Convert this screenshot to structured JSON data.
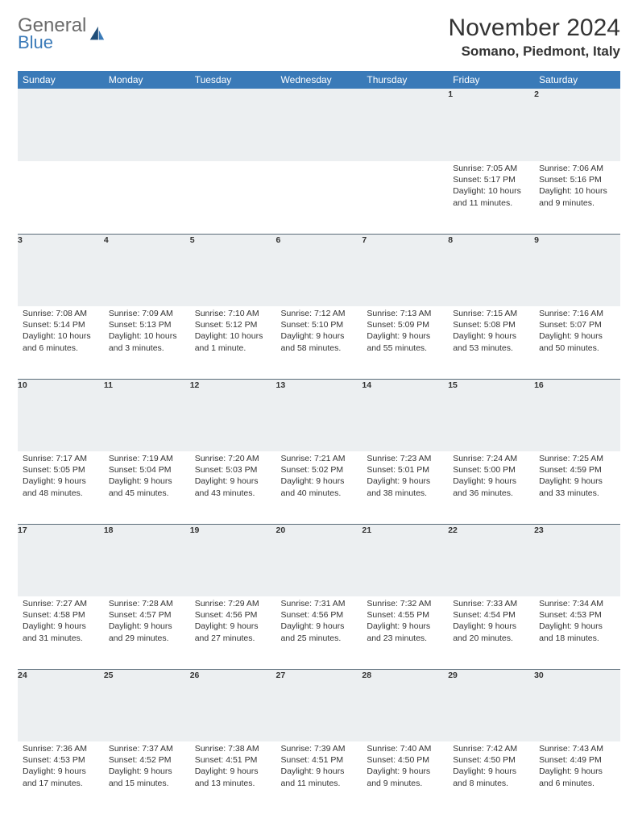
{
  "brand": {
    "word1": "General",
    "word2": "Blue"
  },
  "title": "November 2024",
  "location": "Somano, Piedmont, Italy",
  "colors": {
    "header_bg": "#3a7ab8",
    "daynum_bg": "#eceff1",
    "daynum_border": "#5a6b78",
    "text": "#333333",
    "logo_gray": "#6b6b6b"
  },
  "weekdays": [
    "Sunday",
    "Monday",
    "Tuesday",
    "Wednesday",
    "Thursday",
    "Friday",
    "Saturday"
  ],
  "weeks": [
    [
      null,
      null,
      null,
      null,
      null,
      {
        "n": "1",
        "sr": "Sunrise: 7:05 AM",
        "ss": "Sunset: 5:17 PM",
        "dl": "Daylight: 10 hours and 11 minutes."
      },
      {
        "n": "2",
        "sr": "Sunrise: 7:06 AM",
        "ss": "Sunset: 5:16 PM",
        "dl": "Daylight: 10 hours and 9 minutes."
      }
    ],
    [
      {
        "n": "3",
        "sr": "Sunrise: 7:08 AM",
        "ss": "Sunset: 5:14 PM",
        "dl": "Daylight: 10 hours and 6 minutes."
      },
      {
        "n": "4",
        "sr": "Sunrise: 7:09 AM",
        "ss": "Sunset: 5:13 PM",
        "dl": "Daylight: 10 hours and 3 minutes."
      },
      {
        "n": "5",
        "sr": "Sunrise: 7:10 AM",
        "ss": "Sunset: 5:12 PM",
        "dl": "Daylight: 10 hours and 1 minute."
      },
      {
        "n": "6",
        "sr": "Sunrise: 7:12 AM",
        "ss": "Sunset: 5:10 PM",
        "dl": "Daylight: 9 hours and 58 minutes."
      },
      {
        "n": "7",
        "sr": "Sunrise: 7:13 AM",
        "ss": "Sunset: 5:09 PM",
        "dl": "Daylight: 9 hours and 55 minutes."
      },
      {
        "n": "8",
        "sr": "Sunrise: 7:15 AM",
        "ss": "Sunset: 5:08 PM",
        "dl": "Daylight: 9 hours and 53 minutes."
      },
      {
        "n": "9",
        "sr": "Sunrise: 7:16 AM",
        "ss": "Sunset: 5:07 PM",
        "dl": "Daylight: 9 hours and 50 minutes."
      }
    ],
    [
      {
        "n": "10",
        "sr": "Sunrise: 7:17 AM",
        "ss": "Sunset: 5:05 PM",
        "dl": "Daylight: 9 hours and 48 minutes."
      },
      {
        "n": "11",
        "sr": "Sunrise: 7:19 AM",
        "ss": "Sunset: 5:04 PM",
        "dl": "Daylight: 9 hours and 45 minutes."
      },
      {
        "n": "12",
        "sr": "Sunrise: 7:20 AM",
        "ss": "Sunset: 5:03 PM",
        "dl": "Daylight: 9 hours and 43 minutes."
      },
      {
        "n": "13",
        "sr": "Sunrise: 7:21 AM",
        "ss": "Sunset: 5:02 PM",
        "dl": "Daylight: 9 hours and 40 minutes."
      },
      {
        "n": "14",
        "sr": "Sunrise: 7:23 AM",
        "ss": "Sunset: 5:01 PM",
        "dl": "Daylight: 9 hours and 38 minutes."
      },
      {
        "n": "15",
        "sr": "Sunrise: 7:24 AM",
        "ss": "Sunset: 5:00 PM",
        "dl": "Daylight: 9 hours and 36 minutes."
      },
      {
        "n": "16",
        "sr": "Sunrise: 7:25 AM",
        "ss": "Sunset: 4:59 PM",
        "dl": "Daylight: 9 hours and 33 minutes."
      }
    ],
    [
      {
        "n": "17",
        "sr": "Sunrise: 7:27 AM",
        "ss": "Sunset: 4:58 PM",
        "dl": "Daylight: 9 hours and 31 minutes."
      },
      {
        "n": "18",
        "sr": "Sunrise: 7:28 AM",
        "ss": "Sunset: 4:57 PM",
        "dl": "Daylight: 9 hours and 29 minutes."
      },
      {
        "n": "19",
        "sr": "Sunrise: 7:29 AM",
        "ss": "Sunset: 4:56 PM",
        "dl": "Daylight: 9 hours and 27 minutes."
      },
      {
        "n": "20",
        "sr": "Sunrise: 7:31 AM",
        "ss": "Sunset: 4:56 PM",
        "dl": "Daylight: 9 hours and 25 minutes."
      },
      {
        "n": "21",
        "sr": "Sunrise: 7:32 AM",
        "ss": "Sunset: 4:55 PM",
        "dl": "Daylight: 9 hours and 23 minutes."
      },
      {
        "n": "22",
        "sr": "Sunrise: 7:33 AM",
        "ss": "Sunset: 4:54 PM",
        "dl": "Daylight: 9 hours and 20 minutes."
      },
      {
        "n": "23",
        "sr": "Sunrise: 7:34 AM",
        "ss": "Sunset: 4:53 PM",
        "dl": "Daylight: 9 hours and 18 minutes."
      }
    ],
    [
      {
        "n": "24",
        "sr": "Sunrise: 7:36 AM",
        "ss": "Sunset: 4:53 PM",
        "dl": "Daylight: 9 hours and 17 minutes."
      },
      {
        "n": "25",
        "sr": "Sunrise: 7:37 AM",
        "ss": "Sunset: 4:52 PM",
        "dl": "Daylight: 9 hours and 15 minutes."
      },
      {
        "n": "26",
        "sr": "Sunrise: 7:38 AM",
        "ss": "Sunset: 4:51 PM",
        "dl": "Daylight: 9 hours and 13 minutes."
      },
      {
        "n": "27",
        "sr": "Sunrise: 7:39 AM",
        "ss": "Sunset: 4:51 PM",
        "dl": "Daylight: 9 hours and 11 minutes."
      },
      {
        "n": "28",
        "sr": "Sunrise: 7:40 AM",
        "ss": "Sunset: 4:50 PM",
        "dl": "Daylight: 9 hours and 9 minutes."
      },
      {
        "n": "29",
        "sr": "Sunrise: 7:42 AM",
        "ss": "Sunset: 4:50 PM",
        "dl": "Daylight: 9 hours and 8 minutes."
      },
      {
        "n": "30",
        "sr": "Sunrise: 7:43 AM",
        "ss": "Sunset: 4:49 PM",
        "dl": "Daylight: 9 hours and 6 minutes."
      }
    ]
  ]
}
